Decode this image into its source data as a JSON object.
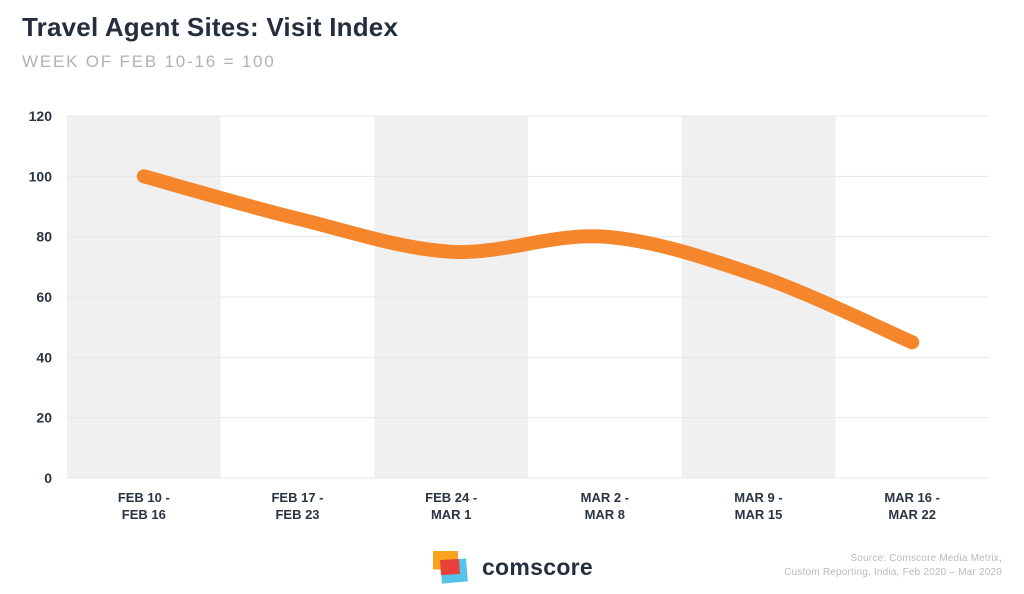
{
  "header": {
    "title": "Travel Agent Sites: Visit Index",
    "subtitle": "WEEK OF FEB 10-16 = 100"
  },
  "chart_data": {
    "type": "line",
    "title": "Travel Agent Sites: Visit Index",
    "subtitle": "WEEK OF FEB 10-16 = 100",
    "series_name": "Visit Index",
    "categories": [
      "FEB 10 - FEB 16",
      "FEB 17 - FEB 23",
      "FEB 24 - MAR 1",
      "MAR 2 - MAR 8",
      "MAR 9 - MAR 15",
      "MAR 16 - MAR 22"
    ],
    "category_lines": [
      [
        "FEB 10 -",
        "FEB 16"
      ],
      [
        "FEB 17 -",
        "FEB 23"
      ],
      [
        "FEB 24 -",
        "MAR 1"
      ],
      [
        "MAR 2 -",
        "MAR 8"
      ],
      [
        "MAR 9 -",
        "MAR 15"
      ],
      [
        "MAR 16 -",
        "MAR 22"
      ]
    ],
    "values": [
      100,
      86,
      75,
      80,
      67,
      45
    ],
    "xlabel": "",
    "ylabel": "",
    "ylim": [
      0,
      120
    ],
    "yticks": [
      0,
      20,
      40,
      60,
      80,
      100,
      120
    ],
    "grid": true,
    "smooth": true,
    "legend": "none",
    "line_color": "#F5862B",
    "band_color": "#F0F0F0",
    "gridline_color": "#E7E7E7",
    "axis_label_color": "#2A3443"
  },
  "footer": {
    "logo_text": "comscore",
    "logo_colors": {
      "orange": "#FAA21E",
      "red": "#E8413A",
      "cyan": "#55C4E8"
    },
    "source_line1": "Source: Comscore Media Metrix,",
    "source_line2": "Custom Reporting, India, Feb 2020 – Mar 2020"
  },
  "colors": {
    "background": "#FFFFFF",
    "title_text": "#242E3D",
    "subtitle_text": "#B2B2B2"
  }
}
